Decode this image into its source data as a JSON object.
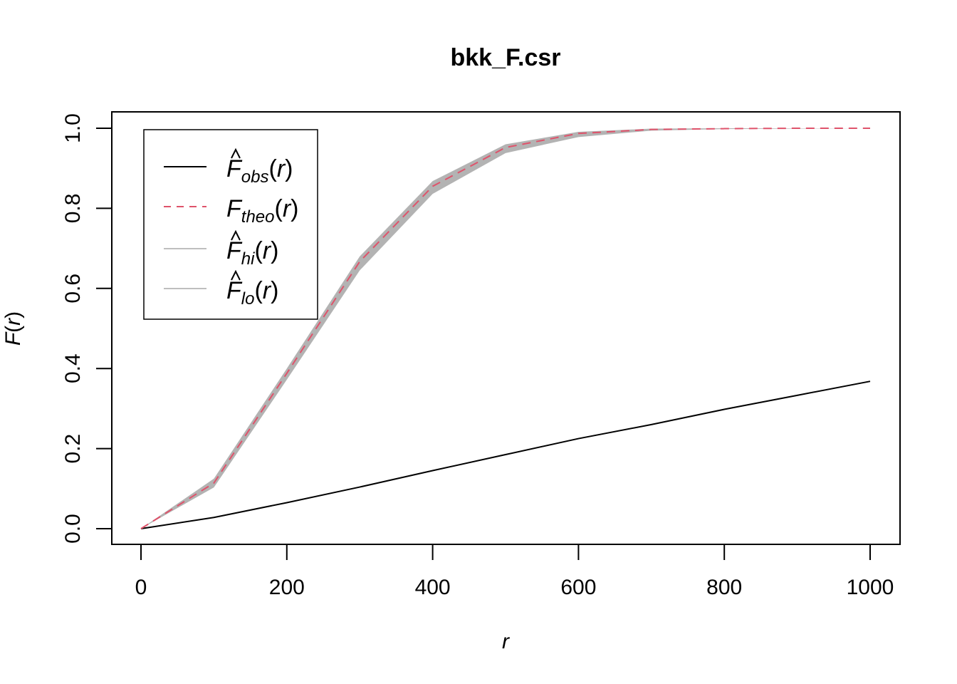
{
  "chart_data": {
    "type": "line",
    "title": "bkk_F.csr",
    "xlabel": "r",
    "ylabel_main": "F",
    "ylabel_arg": "r",
    "xlim": [
      0,
      1000
    ],
    "ylim": [
      0,
      1
    ],
    "x_ticks": [
      "0",
      "200",
      "400",
      "600",
      "800",
      "1000"
    ],
    "y_ticks": [
      "0.0",
      "0.2",
      "0.4",
      "0.6",
      "0.8",
      "1.0"
    ],
    "x": [
      0,
      100,
      200,
      300,
      400,
      500,
      600,
      700,
      800,
      900,
      1000
    ],
    "series": [
      {
        "key": "obs",
        "values": [
          0,
          0.028,
          0.065,
          0.104,
          0.145,
          0.185,
          0.225,
          0.26,
          0.298,
          0.333,
          0.368
        ],
        "color": "#000000",
        "dash": "solid"
      },
      {
        "key": "theo",
        "values": [
          0,
          0.114,
          0.388,
          0.667,
          0.855,
          0.952,
          0.987,
          0.997,
          0.999,
          1.0,
          1.0
        ],
        "color": "#df536b",
        "dash": "dashed"
      },
      {
        "key": "hi",
        "values": [
          0,
          0.125,
          0.4,
          0.68,
          0.868,
          0.96,
          0.991,
          0.999,
          1.0,
          1.0,
          1.0
        ],
        "color": "#bebebe",
        "dash": "solid"
      },
      {
        "key": "lo",
        "values": [
          0,
          0.103,
          0.372,
          0.645,
          0.836,
          0.938,
          0.978,
          0.994,
          0.998,
          0.999,
          1.0
        ],
        "color": "#bebebe",
        "dash": "solid"
      }
    ],
    "band_color": "#b3b3b3",
    "grid": false,
    "legend": {
      "placement": "top-left",
      "entries": [
        {
          "main": "F",
          "hat": true,
          "sub": "obs",
          "arg": "r",
          "color": "#000000",
          "dash": "solid"
        },
        {
          "main": "F",
          "hat": false,
          "sub": "theo",
          "arg": "r",
          "color": "#df536b",
          "dash": "dashed"
        },
        {
          "main": "F",
          "hat": true,
          "sub": "hi",
          "arg": "r",
          "color": "#bebebe",
          "dash": "solid"
        },
        {
          "main": "F",
          "hat": true,
          "sub": "lo",
          "arg": "r",
          "color": "#bebebe",
          "dash": "solid"
        }
      ]
    }
  }
}
